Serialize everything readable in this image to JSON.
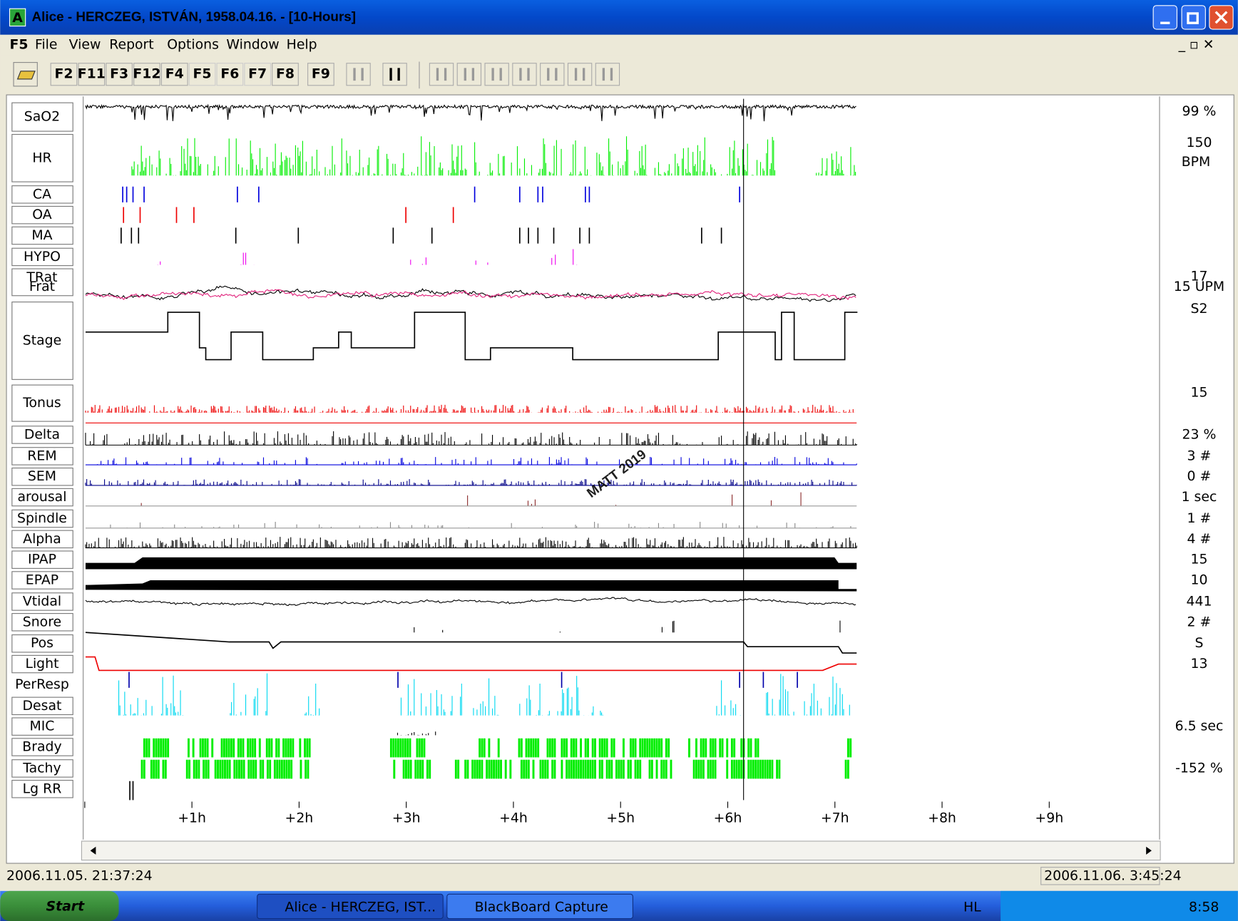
{
  "window": {
    "icon": "A",
    "title": "Alice - HERCZEG, ISTVÁN, 1958.04.16.  - [10-Hours]"
  },
  "menu": [
    "F5",
    "File",
    "View",
    "Report",
    "Options",
    "Window",
    "Help"
  ],
  "toolbar": [
    "F2",
    "F11",
    "F3",
    "F12",
    "F4",
    "F5",
    "F6",
    "F7",
    "F8",
    "F9"
  ],
  "channels": [
    {
      "label": "SaO2",
      "value": "99 %"
    },
    {
      "label": "HR",
      "value": "150",
      "unit": "BPM"
    },
    {
      "label": "CA"
    },
    {
      "label": "OA"
    },
    {
      "label": "MA"
    },
    {
      "label": "HYPO"
    },
    {
      "label": "TRat",
      "label2": "Frat",
      "value": "17",
      "value2": "15 UPM"
    },
    {
      "label": "Stage",
      "value": "S2"
    },
    {
      "label": "Tonus",
      "value": "15"
    },
    {
      "label": "Delta",
      "value": "23 %"
    },
    {
      "label": "REM",
      "value": "3 #"
    },
    {
      "label": "SEM",
      "value": "0 #"
    },
    {
      "label": "arousal",
      "value": "1 sec"
    },
    {
      "label": "Spindle",
      "value": "1 #"
    },
    {
      "label": "Alpha",
      "value": "4 #"
    },
    {
      "label": "IPAP",
      "value": "15"
    },
    {
      "label": "EPAP",
      "value": "10"
    },
    {
      "label": "Vtidal",
      "value": "441"
    },
    {
      "label": "Snore",
      "value": "2 #"
    },
    {
      "label": "Pos",
      "value": "S"
    },
    {
      "label": "Light",
      "value": "13"
    },
    {
      "label": "PerResp"
    },
    {
      "label": "Desat"
    },
    {
      "label": "MIC",
      "value": "6.5 sec"
    },
    {
      "label": "Brady"
    },
    {
      "label": "Tachy",
      "value": "-152 %"
    },
    {
      "label": "Lg RR"
    }
  ],
  "time_axis": [
    "+1h",
    "+2h",
    "+3h",
    "+4h",
    "+5h",
    "+6h",
    "+7h",
    "+8h",
    "+9h"
  ],
  "status": {
    "start": "2006.11.05. 21:37:24",
    "end": "2006.11.06. 3:45:24"
  },
  "taskbar": {
    "start": "Start",
    "tasks": [
      "Alice - HERCZEG, IST...",
      "BlackBoard Capture"
    ],
    "lang": "HL",
    "clock": "8:58"
  },
  "watermark": "MATT 2019"
}
